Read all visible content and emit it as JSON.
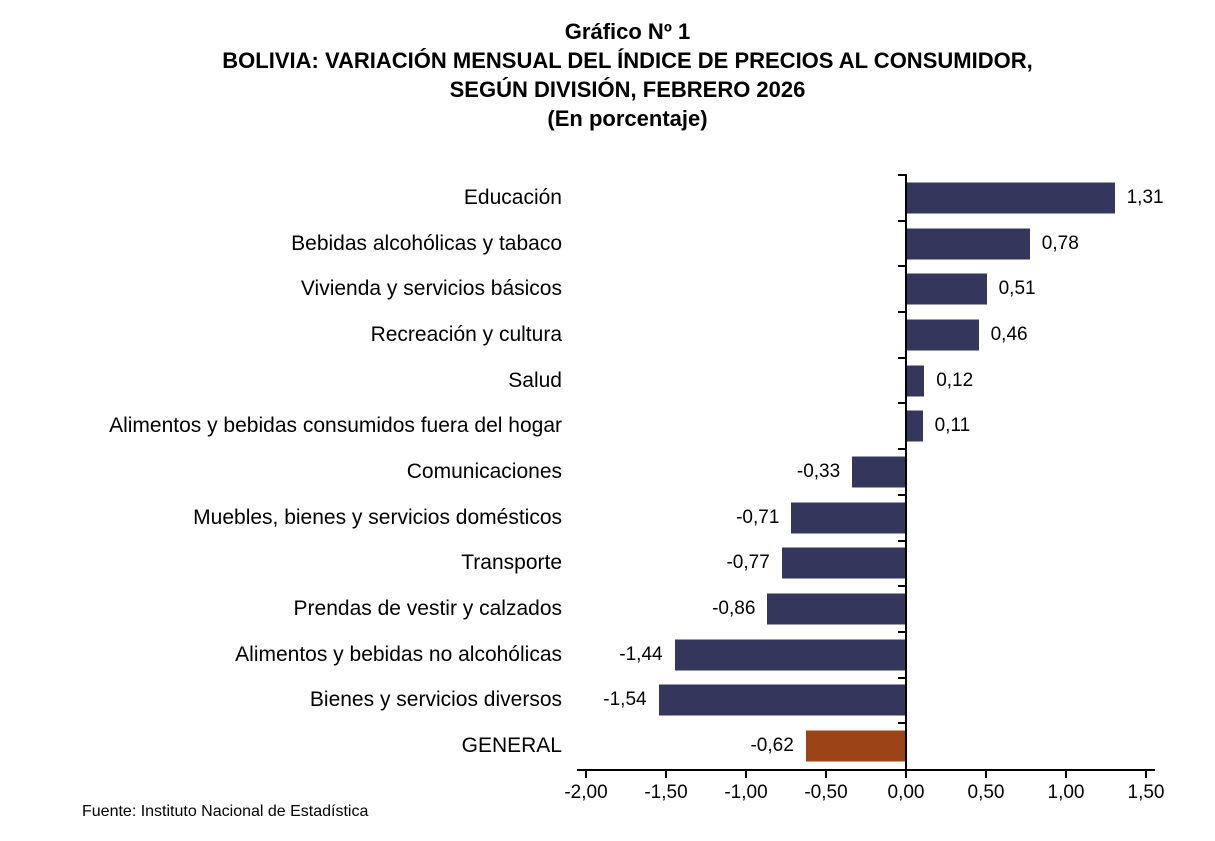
{
  "title": {
    "line1": "Gráfico Nº 1",
    "line2": "BOLIVIA: VARIACIÓN MENSUAL DEL ÍNDICE DE PRECIOS AL CONSUMIDOR,",
    "line3": "SEGÚN DIVISIÓN, FEBRERO 2026",
    "line4": "(En porcentaje)"
  },
  "source": "Fuente: Instituto Nacional de Estadística",
  "chart_data": {
    "type": "bar",
    "orientation": "horizontal",
    "title": "BOLIVIA: VARIACIÓN MENSUAL DEL ÍNDICE DE PRECIOS AL CONSUMIDOR, SEGÚN DIVISIÓN, FEBRERO 2026 (En porcentaje)",
    "categories": [
      "Educación",
      "Bebidas alcohólicas y tabaco",
      "Vivienda y servicios básicos",
      "Recreación y cultura",
      "Salud",
      "Alimentos y bebidas consumidos fuera del hogar",
      "Comunicaciones",
      "Muebles, bienes y servicios domésticos",
      "Transporte",
      "Prendas de vestir y calzados",
      "Alimentos y bebidas no alcohólicas",
      "Bienes y servicios diversos",
      "GENERAL"
    ],
    "values": [
      1.31,
      0.78,
      0.51,
      0.46,
      0.12,
      0.11,
      -0.33,
      -0.71,
      -0.77,
      -0.86,
      -1.44,
      -1.54,
      -0.62
    ],
    "value_labels": [
      "1,31",
      "0,78",
      "0,51",
      "0,46",
      "0,12",
      "0,11",
      "-0,33",
      "-0,71",
      "-0,77",
      "-0,86",
      "-1,44",
      "-1,54",
      "-0,62"
    ],
    "x_ticks": [
      -2.0,
      -1.5,
      -1.0,
      -0.5,
      0.0,
      0.5,
      1.0,
      1.5
    ],
    "x_tick_labels": [
      "-2,00",
      "-1,50",
      "-1,00",
      "-0,50",
      "0,00",
      "0,50",
      "1,00",
      "1,50"
    ],
    "xlim": [
      -2.0,
      1.5
    ],
    "bar_color": "#35365C",
    "highlight_category": "GENERAL",
    "highlight_color": "#9C4417",
    "grid": false,
    "legend": false
  }
}
